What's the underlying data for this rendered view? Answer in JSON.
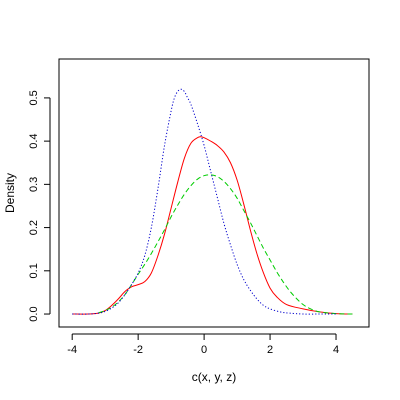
{
  "chart_data": {
    "type": "line",
    "xlabel": "c(x, y, z)",
    "ylabel": "Density",
    "xlim": [
      -4.4,
      5.0
    ],
    "ylim": [
      -0.03,
      0.59
    ],
    "x_ticks": [
      -4,
      -2,
      0,
      2,
      4
    ],
    "y_ticks": [
      0.0,
      0.1,
      0.2,
      0.3,
      0.4,
      0.5
    ],
    "x_tick_labels": [
      "-4",
      "-2",
      "0",
      "2",
      "4"
    ],
    "y_tick_labels": [
      "0.0",
      "0.1",
      "0.2",
      "0.3",
      "0.4",
      "0.5"
    ],
    "grid": false,
    "legend": "none",
    "series": [
      {
        "color": "#ff0000",
        "style": "solid",
        "x": [
          -4.0,
          -3.5,
          -3.2,
          -3.0,
          -2.8,
          -2.6,
          -2.4,
          -2.2,
          -2.0,
          -1.8,
          -1.6,
          -1.4,
          -1.2,
          -1.0,
          -0.8,
          -0.6,
          -0.4,
          -0.2,
          -0.1,
          0.0,
          0.2,
          0.4,
          0.6,
          0.8,
          1.0,
          1.2,
          1.4,
          1.6,
          1.8,
          2.0,
          2.2,
          2.5,
          3.0,
          3.5,
          4.0,
          4.5
        ],
        "y": [
          0.0,
          0.0,
          0.002,
          0.008,
          0.02,
          0.035,
          0.052,
          0.063,
          0.068,
          0.075,
          0.095,
          0.135,
          0.185,
          0.245,
          0.305,
          0.36,
          0.395,
          0.408,
          0.41,
          0.408,
          0.4,
          0.39,
          0.375,
          0.35,
          0.31,
          0.255,
          0.195,
          0.14,
          0.095,
          0.06,
          0.04,
          0.022,
          0.012,
          0.005,
          0.001,
          0.0
        ]
      },
      {
        "color": "#00cc00",
        "style": "dashed",
        "x": [
          -3.2,
          -3.0,
          -2.8,
          -2.6,
          -2.4,
          -2.2,
          -2.0,
          -1.8,
          -1.6,
          -1.4,
          -1.2,
          -1.0,
          -0.8,
          -0.6,
          -0.4,
          -0.2,
          0.0,
          0.2,
          0.4,
          0.6,
          0.8,
          1.0,
          1.2,
          1.4,
          1.6,
          1.8,
          2.0,
          2.2,
          2.4,
          2.6,
          2.8,
          3.0,
          3.2,
          3.5,
          4.0,
          4.5
        ],
        "y": [
          0.003,
          0.008,
          0.016,
          0.028,
          0.045,
          0.068,
          0.092,
          0.115,
          0.14,
          0.167,
          0.195,
          0.225,
          0.252,
          0.277,
          0.297,
          0.312,
          0.32,
          0.322,
          0.318,
          0.307,
          0.29,
          0.268,
          0.24,
          0.212,
          0.182,
          0.152,
          0.125,
          0.098,
          0.074,
          0.053,
          0.036,
          0.022,
          0.013,
          0.005,
          0.001,
          0.0
        ]
      },
      {
        "color": "#0000cc",
        "style": "dotted",
        "x": [
          -4.0,
          -3.5,
          -3.2,
          -3.0,
          -2.8,
          -2.6,
          -2.4,
          -2.2,
          -2.0,
          -1.8,
          -1.6,
          -1.4,
          -1.2,
          -1.0,
          -0.9,
          -0.8,
          -0.7,
          -0.6,
          -0.5,
          -0.4,
          -0.2,
          0.0,
          0.2,
          0.4,
          0.6,
          0.8,
          1.0,
          1.2,
          1.4,
          1.6,
          1.8,
          2.0,
          2.3,
          2.6,
          3.0,
          3.5,
          4.0
        ],
        "y": [
          0.0,
          0.0,
          0.002,
          0.006,
          0.014,
          0.026,
          0.045,
          0.068,
          0.095,
          0.135,
          0.2,
          0.29,
          0.39,
          0.47,
          0.5,
          0.515,
          0.52,
          0.515,
          0.5,
          0.485,
          0.44,
          0.39,
          0.33,
          0.27,
          0.21,
          0.16,
          0.115,
          0.08,
          0.055,
          0.035,
          0.02,
          0.012,
          0.005,
          0.002,
          0.0,
          0.0,
          0.0
        ]
      }
    ]
  }
}
